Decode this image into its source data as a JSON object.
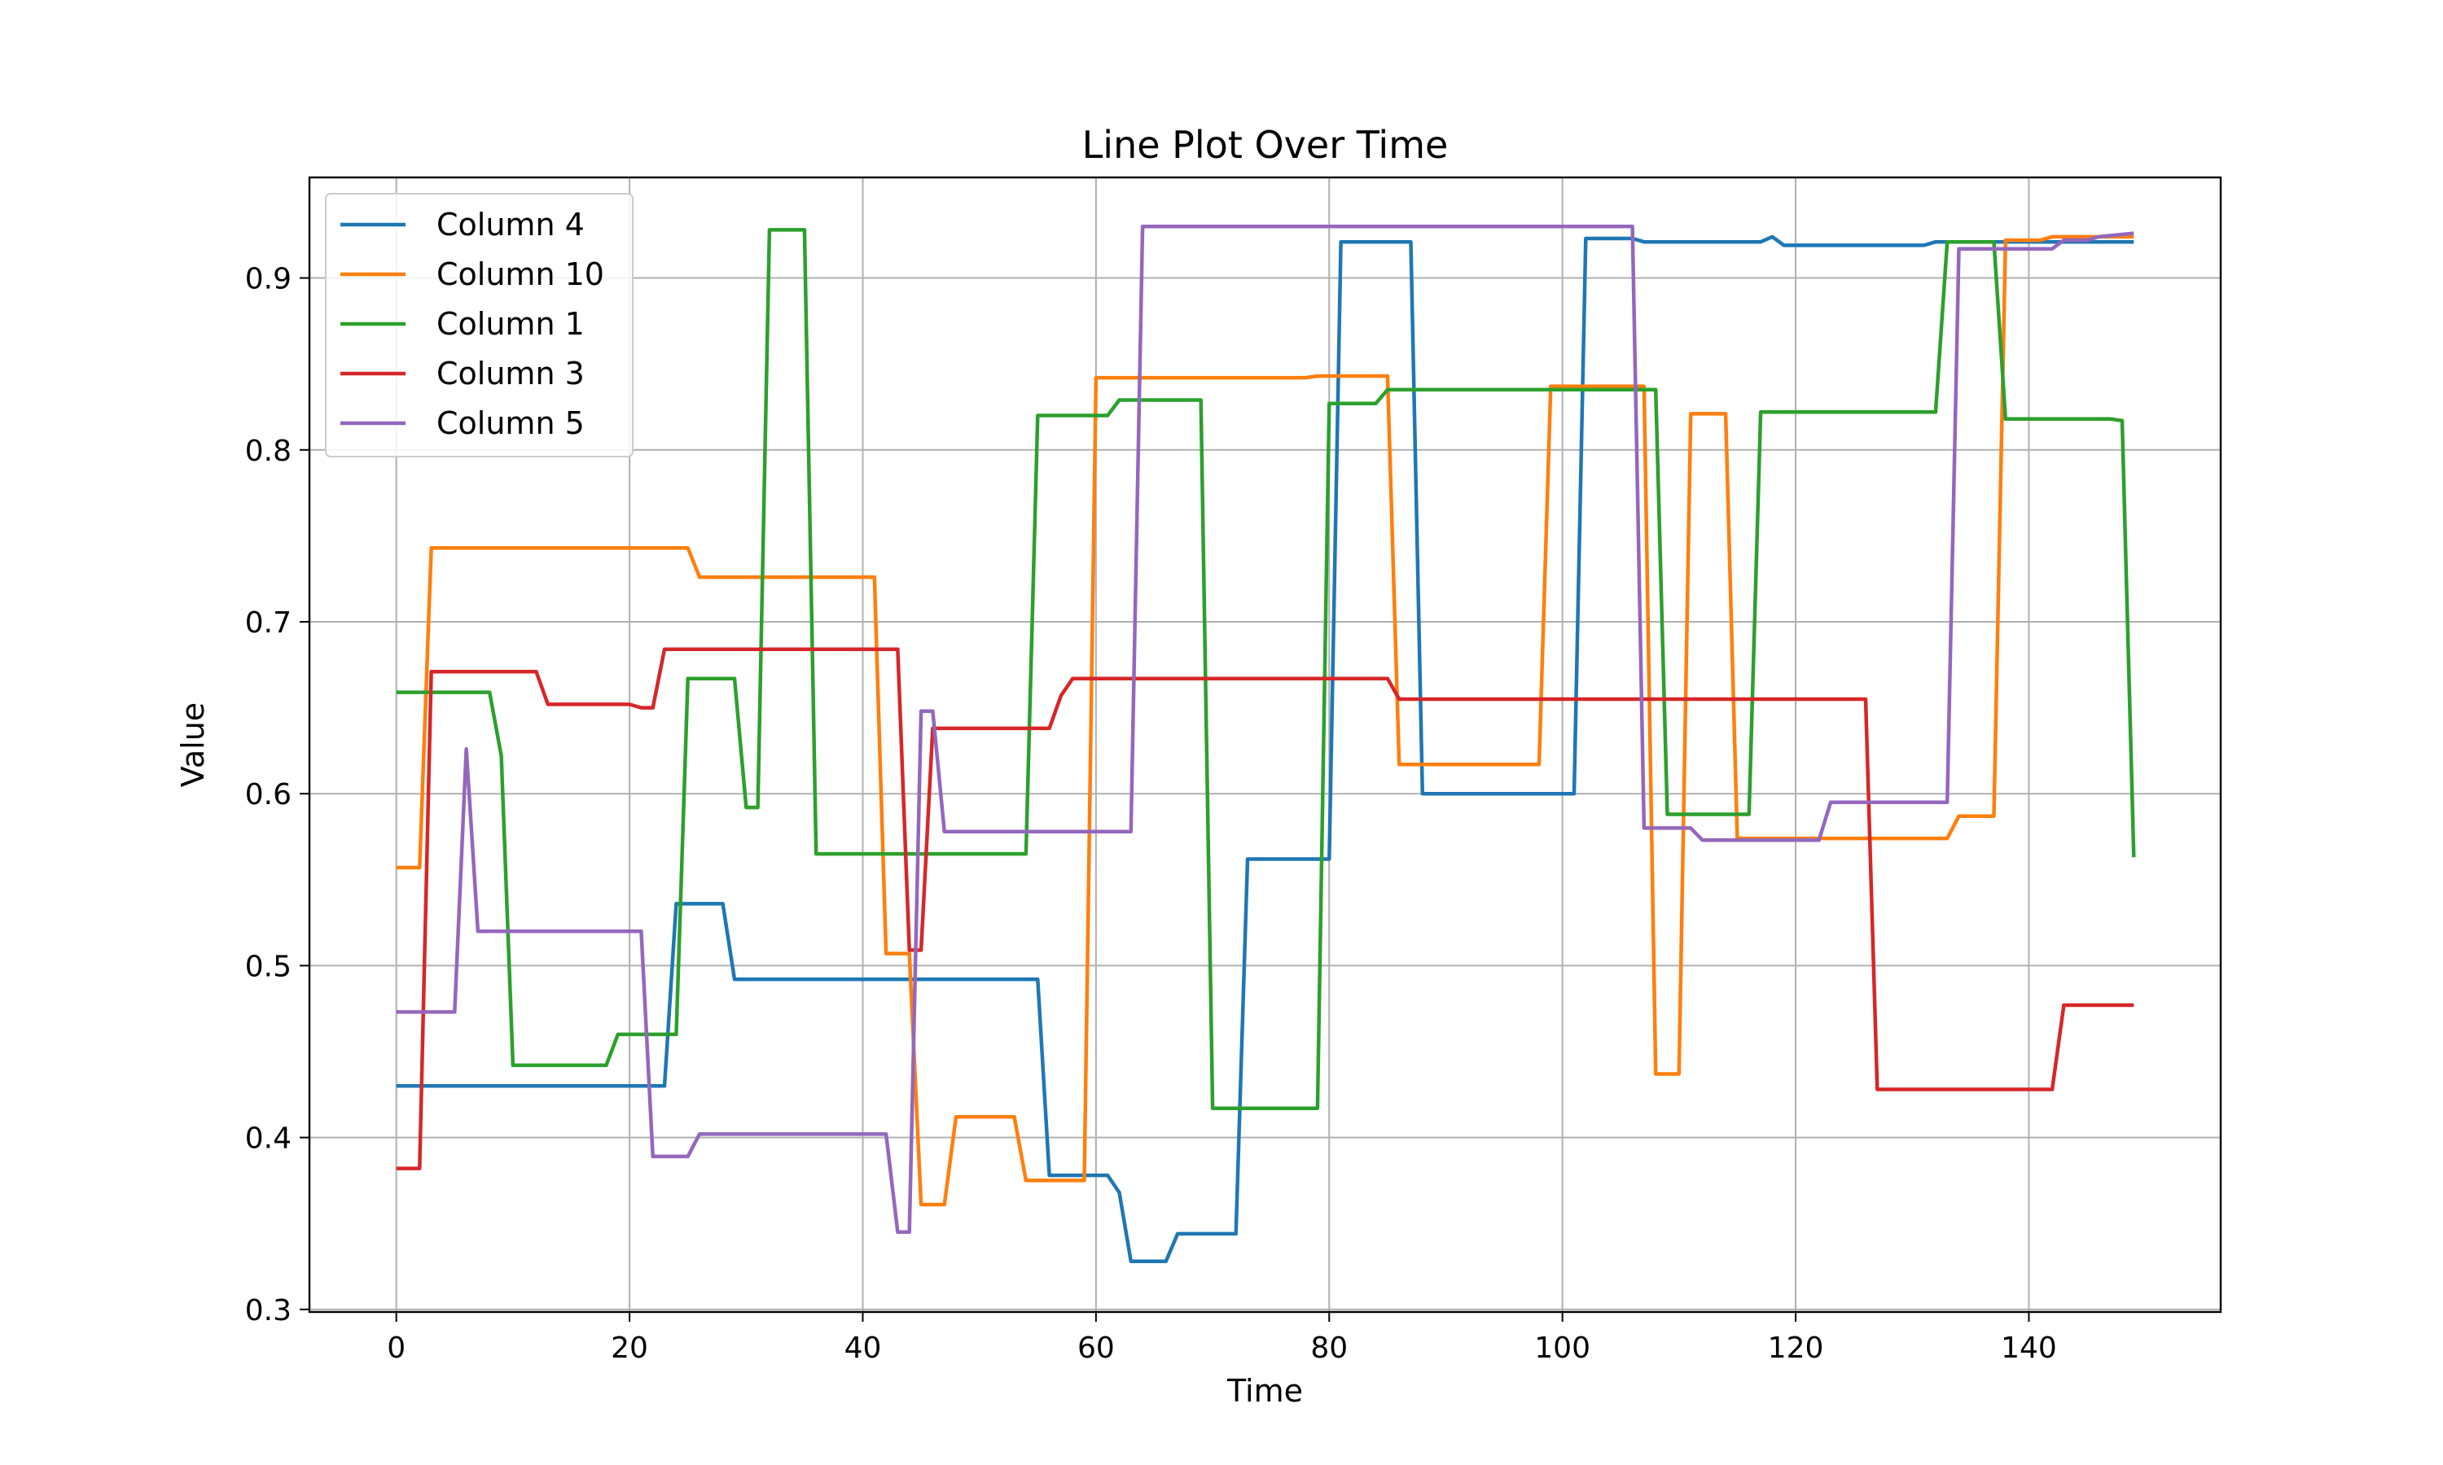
{
  "chart_data": {
    "type": "line",
    "title": "Line Plot Over Time",
    "xlabel": "Time",
    "ylabel": "Value",
    "xlim": [
      -7.45,
      156.45
    ],
    "ylim": [
      0.2985,
      0.9585
    ],
    "x_ticks": [
      0,
      20,
      40,
      60,
      80,
      100,
      120,
      140
    ],
    "y_ticks": [
      0.3,
      0.4,
      0.5,
      0.6,
      0.7,
      0.8,
      0.9
    ],
    "grid": true,
    "legend_position": "top-left",
    "series": [
      {
        "name": "Column 4",
        "color": "#1f77b4",
        "points": [
          [
            0,
            0.43
          ],
          [
            23,
            0.43
          ],
          [
            24,
            0.536
          ],
          [
            28,
            0.536
          ],
          [
            29,
            0.492
          ],
          [
            55,
            0.492
          ],
          [
            56,
            0.378
          ],
          [
            61,
            0.378
          ],
          [
            62,
            0.368
          ],
          [
            63,
            0.328
          ],
          [
            66,
            0.328
          ],
          [
            67,
            0.344
          ],
          [
            72,
            0.344
          ],
          [
            73,
            0.562
          ],
          [
            80,
            0.562
          ],
          [
            81,
            0.921
          ],
          [
            87,
            0.921
          ],
          [
            88,
            0.6
          ],
          [
            101,
            0.6
          ],
          [
            102,
            0.923
          ],
          [
            106,
            0.923
          ],
          [
            107,
            0.921
          ],
          [
            117,
            0.921
          ],
          [
            118,
            0.924
          ],
          [
            119,
            0.919
          ],
          [
            131,
            0.919
          ],
          [
            132,
            0.921
          ],
          [
            149,
            0.921
          ]
        ]
      },
      {
        "name": "Column 10",
        "color": "#ff7f0e",
        "points": [
          [
            0,
            0.557
          ],
          [
            2,
            0.557
          ],
          [
            3,
            0.743
          ],
          [
            25,
            0.743
          ],
          [
            26,
            0.726
          ],
          [
            41,
            0.726
          ],
          [
            42,
            0.507
          ],
          [
            44,
            0.507
          ],
          [
            45,
            0.361
          ],
          [
            47,
            0.361
          ],
          [
            48,
            0.412
          ],
          [
            53,
            0.412
          ],
          [
            54,
            0.375
          ],
          [
            59,
            0.375
          ],
          [
            60,
            0.842
          ],
          [
            78,
            0.842
          ],
          [
            79,
            0.843
          ],
          [
            85,
            0.843
          ],
          [
            86,
            0.617
          ],
          [
            98,
            0.617
          ],
          [
            99,
            0.837
          ],
          [
            107,
            0.837
          ],
          [
            108,
            0.437
          ],
          [
            110,
            0.437
          ],
          [
            111,
            0.821
          ],
          [
            114,
            0.821
          ],
          [
            115,
            0.574
          ],
          [
            133,
            0.574
          ],
          [
            134,
            0.587
          ],
          [
            137,
            0.587
          ],
          [
            138,
            0.922
          ],
          [
            141,
            0.922
          ],
          [
            142,
            0.924
          ],
          [
            149,
            0.924
          ]
        ]
      },
      {
        "name": "Column 1",
        "color": "#2ca02c",
        "points": [
          [
            0,
            0.659
          ],
          [
            8,
            0.659
          ],
          [
            9,
            0.622
          ],
          [
            10,
            0.442
          ],
          [
            18,
            0.442
          ],
          [
            19,
            0.46
          ],
          [
            24,
            0.46
          ],
          [
            25,
            0.667
          ],
          [
            29,
            0.667
          ],
          [
            30,
            0.592
          ],
          [
            31,
            0.592
          ],
          [
            32,
            0.928
          ],
          [
            35,
            0.928
          ],
          [
            36,
            0.565
          ],
          [
            54,
            0.565
          ],
          [
            55,
            0.82
          ],
          [
            61,
            0.82
          ],
          [
            62,
            0.829
          ],
          [
            69,
            0.829
          ],
          [
            70,
            0.417
          ],
          [
            79,
            0.417
          ],
          [
            80,
            0.827
          ],
          [
            84,
            0.827
          ],
          [
            85,
            0.835
          ],
          [
            108,
            0.835
          ],
          [
            109,
            0.588
          ],
          [
            116,
            0.588
          ],
          [
            117,
            0.822
          ],
          [
            132,
            0.822
          ],
          [
            133,
            0.921
          ],
          [
            137,
            0.921
          ],
          [
            138,
            0.818
          ],
          [
            147,
            0.818
          ],
          [
            148,
            0.817
          ],
          [
            149,
            0.563
          ]
        ]
      },
      {
        "name": "Column 3",
        "color": "#d62728",
        "points": [
          [
            0,
            0.382
          ],
          [
            2,
            0.382
          ],
          [
            3,
            0.671
          ],
          [
            12,
            0.671
          ],
          [
            13,
            0.652
          ],
          [
            20,
            0.652
          ],
          [
            21,
            0.65
          ],
          [
            22,
            0.65
          ],
          [
            23,
            0.684
          ],
          [
            43,
            0.684
          ],
          [
            44,
            0.509
          ],
          [
            45,
            0.509
          ],
          [
            46,
            0.638
          ],
          [
            56,
            0.638
          ],
          [
            57,
            0.657
          ],
          [
            58,
            0.667
          ],
          [
            85,
            0.667
          ],
          [
            86,
            0.655
          ],
          [
            126,
            0.655
          ],
          [
            127,
            0.428
          ],
          [
            142,
            0.428
          ],
          [
            143,
            0.477
          ],
          [
            149,
            0.477
          ]
        ]
      },
      {
        "name": "Column 5",
        "color": "#9467bd",
        "points": [
          [
            0,
            0.473
          ],
          [
            5,
            0.473
          ],
          [
            6,
            0.626
          ],
          [
            7,
            0.52
          ],
          [
            21,
            0.52
          ],
          [
            22,
            0.389
          ],
          [
            25,
            0.389
          ],
          [
            26,
            0.402
          ],
          [
            42,
            0.402
          ],
          [
            43,
            0.345
          ],
          [
            44,
            0.345
          ],
          [
            45,
            0.648
          ],
          [
            46,
            0.648
          ],
          [
            47,
            0.578
          ],
          [
            63,
            0.578
          ],
          [
            64,
            0.93
          ],
          [
            106,
            0.93
          ],
          [
            107,
            0.58
          ],
          [
            111,
            0.58
          ],
          [
            112,
            0.573
          ],
          [
            122,
            0.573
          ],
          [
            123,
            0.595
          ],
          [
            133,
            0.595
          ],
          [
            134,
            0.917
          ],
          [
            142,
            0.917
          ],
          [
            143,
            0.922
          ],
          [
            144,
            0.922
          ],
          [
            145,
            0.922
          ],
          [
            146,
            0.924
          ],
          [
            149,
            0.926
          ]
        ]
      }
    ]
  }
}
